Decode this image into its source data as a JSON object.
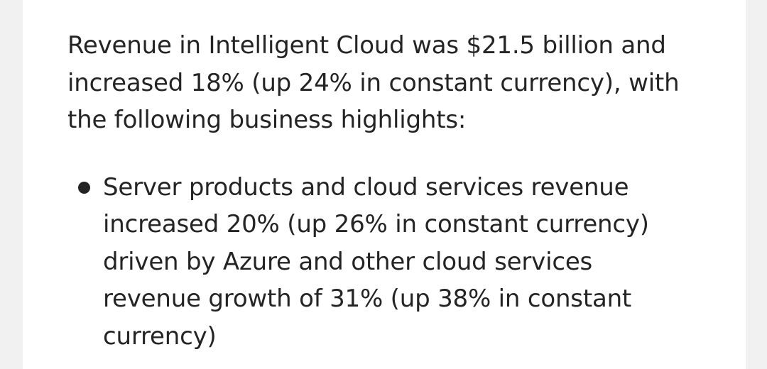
{
  "intro_lines": [
    "Revenue in Intelligent Cloud was $21.5 billion and",
    "increased 18% (up 24% in constant currency), with",
    "the following business highlights:"
  ],
  "bullets": [
    {
      "lines": [
        "Server products and cloud services revenue",
        "increased 20% (up 26% in constant currency)",
        "driven by Azure and other cloud services",
        "revenue growth of 31% (up 38% in constant",
        "currency)"
      ]
    }
  ]
}
